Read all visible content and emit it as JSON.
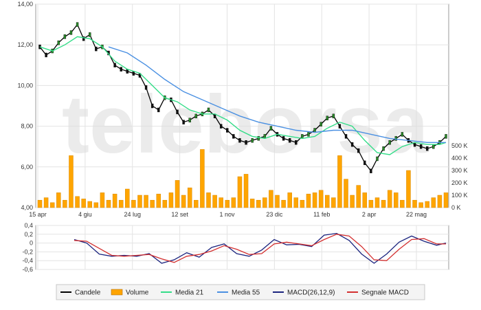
{
  "watermark": "teleborsa",
  "colors": {
    "candle": "#000000",
    "candle_up": "#2a8a2a",
    "volume": "#ffa500",
    "media21": "#33dd88",
    "media55": "#4a90e2",
    "macd": "#1a237e",
    "signal": "#d32f2f",
    "grid": "#e3e3e3",
    "frame": "#9a9a9a"
  },
  "chart_data": [
    {
      "type": "line",
      "panel": "price",
      "x_ticks": [
        "15 apr",
        "4 giu",
        "24 lug",
        "12 set",
        "1 nov",
        "23 dic",
        "11 feb",
        "2 apr",
        "22 mag"
      ],
      "y_ticks": [
        "14,00",
        "12,00",
        "10,00",
        "8,00",
        "6,00",
        "4,00"
      ],
      "ylim": [
        4,
        14
      ],
      "volume_ticks": [
        "500 K",
        "400 K",
        "300 K",
        "200 K",
        "100 K",
        "0 K"
      ],
      "volume_lim": [
        0,
        500
      ],
      "series": [
        {
          "name": "Candele",
          "x": [
            0,
            10,
            20,
            30,
            40,
            50,
            60,
            70,
            80,
            90,
            100,
            110,
            120,
            130,
            140,
            150,
            160,
            170,
            180,
            190,
            200,
            210,
            220,
            230,
            240,
            250,
            260,
            270,
            280,
            290,
            300,
            310,
            320,
            330,
            340,
            350,
            360,
            370,
            380,
            390,
            400,
            410,
            420,
            430,
            440,
            450,
            460,
            470,
            480,
            490,
            500,
            510,
            520,
            530,
            540,
            550,
            560,
            570,
            580,
            590,
            600,
            610,
            620,
            630,
            640,
            650
          ],
          "values": [
            11.9,
            11.5,
            11.7,
            12.1,
            12.4,
            12.6,
            13.0,
            12.3,
            12.5,
            11.8,
            11.9,
            11.6,
            11.0,
            10.8,
            10.7,
            10.6,
            10.5,
            9.9,
            9.0,
            8.8,
            9.4,
            9.3,
            8.7,
            8.2,
            8.3,
            8.5,
            8.6,
            8.8,
            8.5,
            8.0,
            7.8,
            7.5,
            7.3,
            7.2,
            7.3,
            7.4,
            7.5,
            7.9,
            7.6,
            7.4,
            7.3,
            7.2,
            7.5,
            7.6,
            7.8,
            8.1,
            8.4,
            8.5,
            8.0,
            7.5,
            7.1,
            6.8,
            6.2,
            5.8,
            6.4,
            6.9,
            7.2,
            7.4,
            7.6,
            7.3,
            7.1,
            7.0,
            6.9,
            7.0,
            7.2,
            7.5
          ]
        },
        {
          "name": "Media 21",
          "x": [
            0,
            20,
            40,
            60,
            80,
            100,
            120,
            140,
            160,
            180,
            200,
            220,
            240,
            260,
            280,
            300,
            320,
            340,
            360,
            380,
            400,
            420,
            440,
            460,
            480,
            500,
            520,
            540,
            560,
            580,
            600,
            620,
            640,
            650
          ],
          "values": [
            11.9,
            11.7,
            12.0,
            12.4,
            12.3,
            11.9,
            11.2,
            10.8,
            10.6,
            10.0,
            9.4,
            9.2,
            8.8,
            8.6,
            8.6,
            8.3,
            7.8,
            7.5,
            7.4,
            7.6,
            7.5,
            7.4,
            7.5,
            7.9,
            8.2,
            8.0,
            7.3,
            6.7,
            6.6,
            7.0,
            7.2,
            7.1,
            7.1,
            7.2
          ]
        },
        {
          "name": "Media 55",
          "x": [
            110,
            140,
            170,
            200,
            230,
            260,
            290,
            320,
            350,
            380,
            410,
            440,
            470,
            500,
            530,
            560,
            590,
            620,
            650
          ],
          "values": [
            11.9,
            11.6,
            11.0,
            10.3,
            9.7,
            9.3,
            8.9,
            8.5,
            8.2,
            8.0,
            7.8,
            7.7,
            7.8,
            7.8,
            7.6,
            7.4,
            7.3,
            7.2,
            7.2
          ]
        }
      ],
      "volume": {
        "name": "Volume",
        "x": [
          0,
          10,
          20,
          30,
          40,
          50,
          60,
          70,
          80,
          90,
          100,
          110,
          120,
          130,
          140,
          150,
          160,
          170,
          180,
          190,
          200,
          210,
          220,
          230,
          240,
          250,
          260,
          270,
          280,
          290,
          300,
          310,
          320,
          330,
          340,
          350,
          360,
          370,
          380,
          390,
          400,
          410,
          420,
          430,
          440,
          450,
          460,
          470,
          480,
          490,
          500,
          510,
          520,
          530,
          540,
          550,
          560,
          570,
          580,
          590,
          600,
          610,
          620,
          630,
          640,
          650
        ],
        "values": [
          60,
          80,
          40,
          120,
          60,
          420,
          90,
          70,
          50,
          40,
          120,
          60,
          110,
          60,
          150,
          60,
          100,
          100,
          60,
          110,
          60,
          120,
          220,
          100,
          160,
          60,
          470,
          120,
          100,
          80,
          60,
          80,
          250,
          270,
          70,
          60,
          80,
          140,
          100,
          60,
          120,
          80,
          60,
          110,
          120,
          140,
          100,
          80,
          420,
          230,
          100,
          180,
          120,
          60,
          80,
          60,
          140,
          120,
          60,
          300,
          60,
          40,
          50,
          80,
          100,
          120
        ]
      }
    },
    {
      "type": "line",
      "panel": "macd",
      "y_ticks": [
        "0,4",
        "0,2",
        "0",
        "-0,2",
        "-0,4",
        "-0,6"
      ],
      "ylim": [
        -0.6,
        0.4
      ],
      "series": [
        {
          "name": "MACD(26,12,9)",
          "x": [
            55,
            75,
            95,
            115,
            135,
            155,
            175,
            195,
            215,
            235,
            255,
            275,
            295,
            315,
            335,
            355,
            375,
            395,
            415,
            435,
            455,
            475,
            495,
            515,
            535,
            555,
            575,
            595,
            615,
            635,
            650
          ],
          "values": [
            0.08,
            0.0,
            -0.25,
            -0.3,
            -0.28,
            -0.3,
            -0.24,
            -0.46,
            -0.38,
            -0.22,
            -0.32,
            -0.1,
            -0.02,
            -0.24,
            -0.3,
            -0.16,
            0.08,
            -0.04,
            -0.03,
            -0.08,
            0.18,
            0.22,
            0.06,
            -0.25,
            -0.46,
            -0.25,
            0.02,
            0.16,
            0.04,
            -0.05,
            0.0
          ]
        },
        {
          "name": "Segnale MACD",
          "x": [
            55,
            75,
            95,
            115,
            135,
            155,
            175,
            195,
            215,
            235,
            255,
            275,
            295,
            315,
            335,
            355,
            375,
            395,
            415,
            435,
            455,
            475,
            495,
            515,
            535,
            555,
            575,
            595,
            615,
            635,
            650
          ],
          "values": [
            0.06,
            0.04,
            -0.12,
            -0.28,
            -0.3,
            -0.28,
            -0.26,
            -0.36,
            -0.44,
            -0.3,
            -0.26,
            -0.18,
            -0.06,
            -0.14,
            -0.26,
            -0.24,
            -0.02,
            0.02,
            -0.02,
            -0.06,
            0.08,
            0.2,
            0.16,
            -0.08,
            -0.38,
            -0.4,
            -0.14,
            0.08,
            0.1,
            -0.02,
            -0.02
          ]
        }
      ]
    }
  ],
  "legend": {
    "items": [
      {
        "label": "Candele",
        "swatch": "line",
        "color": "#000000"
      },
      {
        "label": "Volume",
        "swatch": "box",
        "color": "#ffa500"
      },
      {
        "label": "Media 21",
        "swatch": "line",
        "color": "#33dd88"
      },
      {
        "label": "Media 55",
        "swatch": "line",
        "color": "#4a90e2"
      },
      {
        "label": "MACD(26,12,9)",
        "swatch": "line",
        "color": "#1a237e"
      },
      {
        "label": "Segnale MACD",
        "swatch": "line",
        "color": "#d32f2f"
      }
    ]
  }
}
